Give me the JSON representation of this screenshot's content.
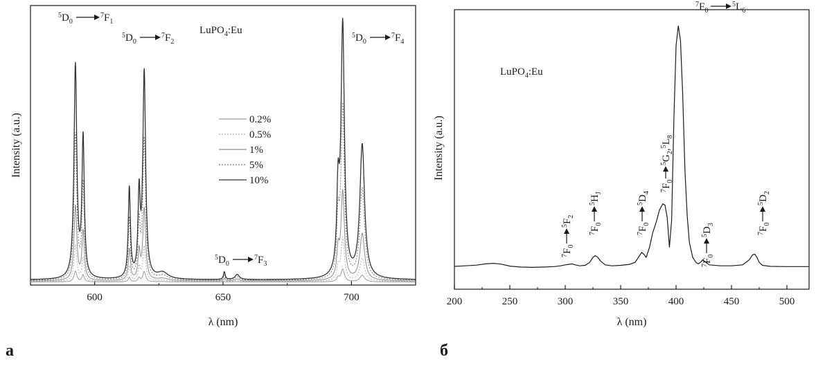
{
  "panels": {
    "a": {
      "label": "а",
      "sample": "LuPO4:Eu",
      "sample_parts": {
        "base": "LuPO",
        "sub": "4",
        "rest": ":Eu"
      },
      "legend": [
        "0.2%",
        "0.5%",
        "1%",
        "5%",
        "10%"
      ]
    },
    "b": {
      "label": "б",
      "sample": "LuPO4:Eu",
      "sample_parts": {
        "base": "LuPO",
        "sub": "4",
        "rest": ":Eu"
      }
    }
  },
  "chart_data": [
    {
      "type": "line",
      "panel": "а",
      "xlabel": "λ (nm)",
      "ylabel": "Intensity (a.u.)",
      "xlim": [
        575,
        725
      ],
      "xticks": [
        600,
        650,
        700
      ],
      "yticks": [],
      "grid": false,
      "legend_position": "center",
      "annotations": [
        {
          "text": "5D0→7F1",
          "x": 594,
          "y": 0.86
        },
        {
          "text": "5D0→7F2",
          "x": 622,
          "y": 0.82
        },
        {
          "text": "5D0→7F3",
          "x": 654,
          "y": 0.12
        },
        {
          "text": "5D0→7F4",
          "x": 712,
          "y": 0.86
        }
      ],
      "peaks": [
        {
          "center": 592.5,
          "width": 0.65,
          "height": 0.83
        },
        {
          "center": 595.5,
          "width": 0.55,
          "height": 0.54
        },
        {
          "center": 613.5,
          "width": 0.5,
          "height": 0.35
        },
        {
          "center": 617.3,
          "width": 0.5,
          "height": 0.31
        },
        {
          "center": 619.3,
          "width": 0.65,
          "height": 0.8
        },
        {
          "center": 626.5,
          "width": 2.5,
          "height": 0.025
        },
        {
          "center": 650.5,
          "width": 0.4,
          "height": 0.03
        },
        {
          "center": 655.5,
          "width": 1.0,
          "height": 0.02
        },
        {
          "center": 694.8,
          "width": 0.6,
          "height": 0.3
        },
        {
          "center": 696.6,
          "width": 0.8,
          "height": 0.98
        },
        {
          "center": 704.2,
          "width": 1.1,
          "height": 0.52
        }
      ],
      "series": [
        {
          "name": "0.2%",
          "scale": 0.05,
          "baseline": 0.004
        },
        {
          "name": "0.5%",
          "scale": 0.17,
          "baseline": 0.006
        },
        {
          "name": "1%",
          "scale": 0.35,
          "baseline": 0.008
        },
        {
          "name": "5%",
          "scale": 0.68,
          "baseline": 0.01
        },
        {
          "name": "10%",
          "scale": 1.0,
          "baseline": 0.012
        }
      ]
    },
    {
      "type": "line",
      "panel": "б",
      "xlabel": "λ (nm)",
      "ylabel": "Intensity (a.u.)",
      "xlim": [
        200,
        520
      ],
      "xticks": [
        200,
        250,
        300,
        350,
        400,
        450,
        500
      ],
      "yticks": [],
      "grid": false,
      "annotations": [
        {
          "text": "7F0→5F2",
          "x": 304,
          "y": 0.12
        },
        {
          "text": "7F0→5HJ",
          "x": 325,
          "y": 0.2
        },
        {
          "text": "7F0→5D4",
          "x": 366,
          "y": 0.24
        },
        {
          "text": "7F0→5G2,5L8",
          "x": 386,
          "y": 0.5
        },
        {
          "text": "7F0→5L6",
          "x": 415,
          "y": 0.97
        },
        {
          "text": "7F0→5D3",
          "x": 421,
          "y": 0.12
        },
        {
          "text": "7F0→5D2",
          "x": 470,
          "y": 0.23
        }
      ],
      "series": [
        {
          "name": "",
          "x": [
            200,
            210,
            220,
            228,
            235,
            242,
            250,
            260,
            270,
            280,
            290,
            296,
            300,
            303,
            306,
            309,
            313,
            318,
            322,
            325,
            327,
            329,
            332,
            336,
            342,
            350,
            358,
            363,
            366,
            369,
            371,
            373,
            376,
            379,
            382,
            385,
            388,
            390,
            392,
            394,
            396,
            398,
            400,
            402,
            404,
            406,
            408,
            410,
            412,
            415,
            418,
            420,
            422,
            424,
            426,
            430,
            440,
            450,
            460,
            466,
            469,
            471,
            473,
            475,
            478,
            485,
            500,
            520
          ],
          "y": [
            0.014,
            0.016,
            0.019,
            0.024,
            0.026,
            0.023,
            0.015,
            0.011,
            0.01,
            0.011,
            0.013,
            0.016,
            0.02,
            0.022,
            0.024,
            0.02,
            0.016,
            0.018,
            0.03,
            0.05,
            0.057,
            0.052,
            0.035,
            0.02,
            0.016,
            0.018,
            0.022,
            0.03,
            0.05,
            0.07,
            0.062,
            0.05,
            0.09,
            0.15,
            0.19,
            0.24,
            0.265,
            0.26,
            0.21,
            0.09,
            0.2,
            0.6,
            0.9,
            0.98,
            0.92,
            0.7,
            0.4,
            0.22,
            0.11,
            0.05,
            0.03,
            0.024,
            0.03,
            0.04,
            0.033,
            0.02,
            0.016,
            0.016,
            0.02,
            0.04,
            0.06,
            0.063,
            0.05,
            0.03,
            0.018,
            0.014,
            0.013,
            0.013
          ]
        }
      ]
    }
  ]
}
